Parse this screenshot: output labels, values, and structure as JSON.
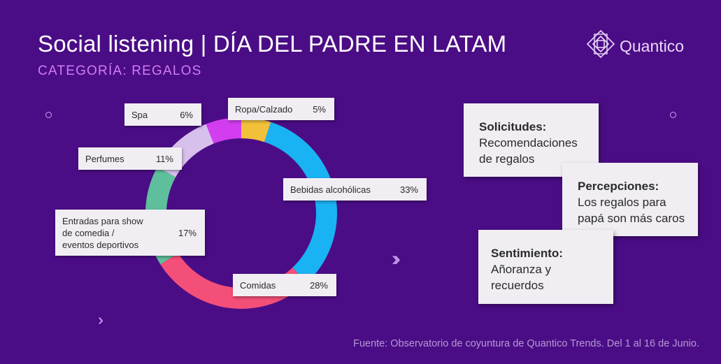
{
  "header": {
    "title": "Social listening | DÍA DEL PADRE EN LATAM",
    "subtitle": "CATEGORÍA: REGALOS",
    "brand": "Quantico"
  },
  "chart_data": {
    "type": "pie",
    "title": "Social listening | DÍA DEL PADRE EN LATAM",
    "subtitle": "CATEGORÍA: REGALOS",
    "categories": [
      "Ropa/Calzado",
      "Bebidas alcohólicas",
      "Comidas",
      "Entradas para show de comedia / eventos deportivos",
      "Perfumes",
      "Spa"
    ],
    "values": [
      5,
      33,
      28,
      17,
      11,
      6
    ],
    "value_labels": [
      "5%",
      "33%",
      "28%",
      "17%",
      "11%",
      "6%"
    ],
    "colors": [
      "#f2c13a",
      "#19b3f3",
      "#f44f78",
      "#5fbf9c",
      "#d7c0ec",
      "#d33df0"
    ],
    "style": "donut",
    "label_lines": {
      "entradas": [
        "Entradas para show",
        "de comedia /",
        "eventos deportivos"
      ]
    }
  },
  "cards": [
    {
      "heading": "Solicitudes:",
      "text_lines": [
        "Recomendaciones",
        "de regalos"
      ]
    },
    {
      "heading": "Percepciones:",
      "text_lines": [
        "Los regalos para",
        "papá son más caros"
      ]
    },
    {
      "heading": "Sentimiento:",
      "text_lines": [
        "Añoranza y",
        "recuerdos"
      ]
    }
  ],
  "source": "Fuente: Observatorio de coyuntura de Quantico Trends. Del 1 al 16 de Junio.",
  "colors": {
    "background": "#4b0d86",
    "subtitle": "#d27cf2",
    "label_bg": "#f1eef3",
    "source_text": "#b49ad4"
  },
  "icons": {
    "logo": "quantico-diamond-logo",
    "chevrons": "double-chevron-right-icon",
    "decor": "ring-dot-icon"
  }
}
